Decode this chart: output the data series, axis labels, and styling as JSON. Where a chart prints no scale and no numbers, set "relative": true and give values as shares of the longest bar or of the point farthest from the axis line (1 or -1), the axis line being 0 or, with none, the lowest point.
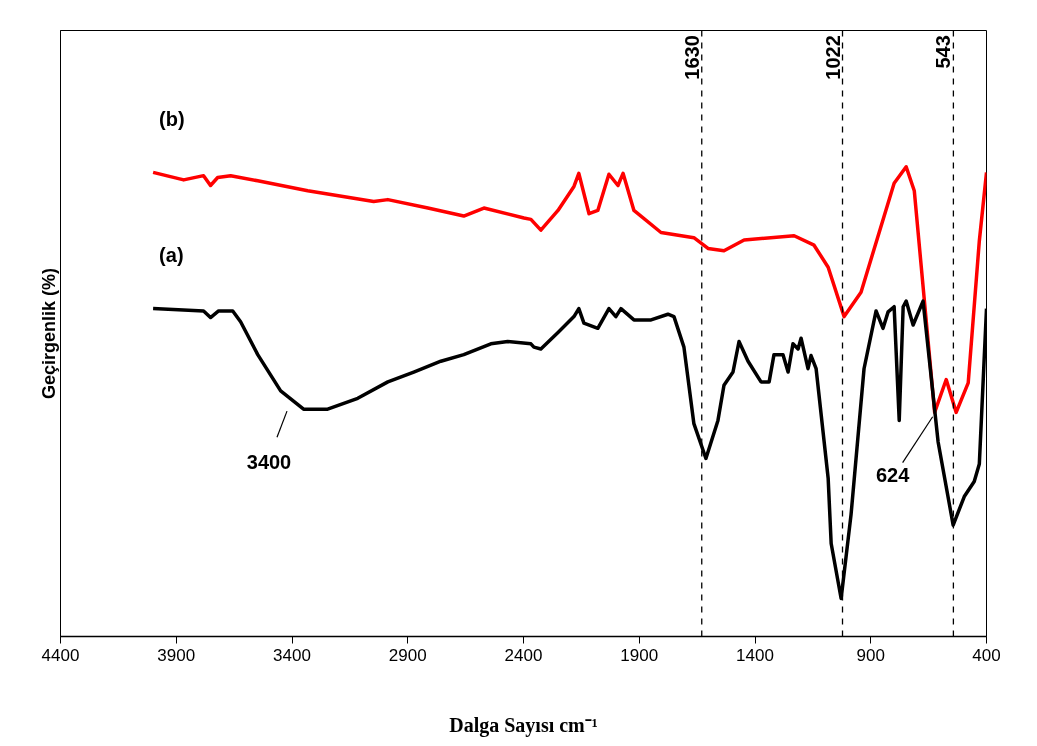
{
  "chart_data": {
    "type": "line",
    "relative": true,
    "xlabel": "Dalga Sayısı cm⁻¹",
    "ylabel": "Geçirgenlik (%)",
    "xlim": [
      4400,
      400
    ],
    "xticks": [
      4400,
      3900,
      3400,
      2900,
      2400,
      1900,
      1400,
      900,
      400
    ],
    "grid": false,
    "marker": "none",
    "line_style": "solid",
    "series": [
      {
        "name": "(b)",
        "color": "#ff0000",
        "x": [
          4000,
          3868,
          3782,
          3752,
          3721,
          3665,
          3548,
          3332,
          3047,
          2986,
          2813,
          2658,
          2571,
          2398,
          2368,
          2325,
          2251,
          2182,
          2161,
          2117,
          2079,
          2031,
          1992,
          1970,
          1923,
          1806,
          1664,
          1603,
          1534,
          1447,
          1231,
          1145,
          1084,
          1015,
          942,
          799,
          747,
          712,
          624,
          574,
          531,
          479,
          431,
          400
        ],
        "values": [
          0.988,
          0.972,
          0.981,
          0.96,
          0.977,
          0.981,
          0.97,
          0.949,
          0.926,
          0.93,
          0.912,
          0.895,
          0.912,
          0.891,
          0.888,
          0.865,
          0.907,
          0.958,
          0.986,
          0.9,
          0.907,
          0.984,
          0.96,
          0.986,
          0.907,
          0.86,
          0.849,
          0.826,
          0.821,
          0.844,
          0.853,
          0.833,
          0.786,
          0.681,
          0.733,
          0.965,
          1.0,
          0.949,
          0.477,
          0.547,
          0.477,
          0.54,
          0.842,
          0.988
        ]
      },
      {
        "name": "(a)",
        "color": "#000000",
        "x": [
          4000,
          3782,
          3752,
          3717,
          3656,
          3622,
          3548,
          3449,
          3350,
          3246,
          3116,
          2986,
          2874,
          2757,
          2658,
          2541,
          2468,
          2368,
          2355,
          2325,
          2251,
          2182,
          2161,
          2139,
          2079,
          2031,
          2001,
          1979,
          1923,
          1849,
          1776,
          1750,
          1707,
          1664,
          1612,
          1560,
          1534,
          1495,
          1469,
          1430,
          1374,
          1339,
          1318,
          1279,
          1257,
          1236,
          1214,
          1201,
          1171,
          1158,
          1136,
          1084,
          1071,
          1028,
          985,
          929,
          877,
          847,
          825,
          799,
          777,
          760,
          747,
          717,
          674,
          609,
          544,
          496,
          453,
          431,
          400
        ],
        "values": [
          0.698,
          0.693,
          0.679,
          0.693,
          0.693,
          0.67,
          0.6,
          0.523,
          0.484,
          0.484,
          0.507,
          0.542,
          0.563,
          0.586,
          0.6,
          0.623,
          0.628,
          0.623,
          0.616,
          0.612,
          0.647,
          0.681,
          0.698,
          0.667,
          0.656,
          0.698,
          0.681,
          0.698,
          0.674,
          0.674,
          0.686,
          0.681,
          0.616,
          0.453,
          0.379,
          0.46,
          0.535,
          0.563,
          0.628,
          0.586,
          0.542,
          0.542,
          0.6,
          0.6,
          0.563,
          0.623,
          0.612,
          0.635,
          0.57,
          0.598,
          0.57,
          0.337,
          0.198,
          0.081,
          0.26,
          0.57,
          0.693,
          0.656,
          0.691,
          0.702,
          0.46,
          0.702,
          0.714,
          0.663,
          0.714,
          0.414,
          0.237,
          0.298,
          0.33,
          0.367,
          0.698
        ]
      }
    ],
    "ref_lines": [
      {
        "axis": "x",
        "value": 1630,
        "label": "1630",
        "color": "#000000",
        "line_style": "dashed"
      },
      {
        "axis": "x",
        "value": 1022,
        "label": "1022",
        "color": "#000000",
        "line_style": "dashed"
      },
      {
        "axis": "x",
        "value": 543,
        "label": "543",
        "color": "#000000",
        "line_style": "dashed"
      }
    ],
    "annotations": [
      {
        "text": "3400",
        "x": 3400,
        "y": 0.503
      },
      {
        "text": "624",
        "x": 624,
        "y": 0.477
      }
    ]
  }
}
